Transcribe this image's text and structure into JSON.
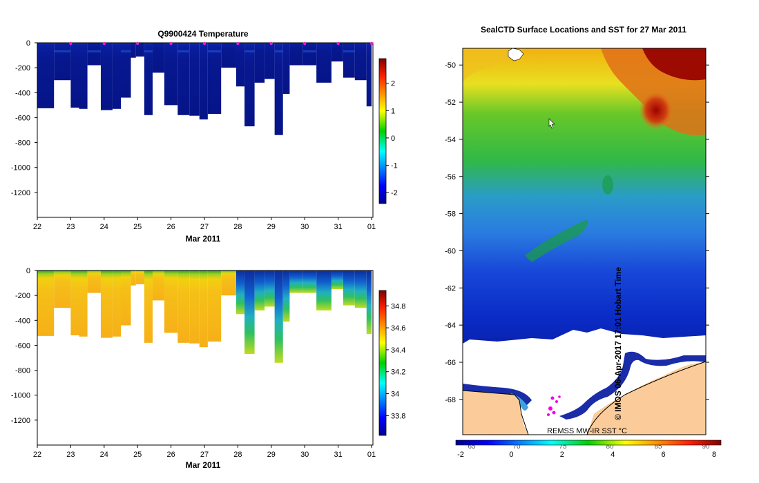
{
  "chart_data": [
    {
      "type": "heatmap",
      "title": "Q9900424  Temperature",
      "xlabel": "Mar 2011",
      "ylabel": "",
      "x_ticks": [
        "22",
        "23",
        "24",
        "25",
        "26",
        "27",
        "28",
        "29",
        "30",
        "31",
        "01"
      ],
      "y_ticks": [
        "0",
        "-200",
        "-400",
        "-600",
        "-800",
        "-1000",
        "-1200"
      ],
      "xlim": [
        22,
        32
      ],
      "ylim": [
        -1400,
        0
      ],
      "colorbar": {
        "min": -2.4,
        "max": 2.9,
        "ticks": [
          "2",
          "1",
          "0",
          "-1",
          "-2"
        ]
      },
      "profile_markers_days": [
        23,
        24,
        25,
        26,
        27,
        28,
        29,
        30,
        31,
        32
      ],
      "profiles": [
        {
          "start": 22.0,
          "end": 22.5,
          "depth": 525
        },
        {
          "start": 22.5,
          "end": 23.0,
          "depth": 300
        },
        {
          "start": 23.0,
          "end": 23.25,
          "depth": 520
        },
        {
          "start": 23.25,
          "end": 23.5,
          "depth": 530
        },
        {
          "start": 23.5,
          "end": 23.9,
          "depth": 180
        },
        {
          "start": 23.9,
          "end": 24.25,
          "depth": 540
        },
        {
          "start": 24.25,
          "end": 24.5,
          "depth": 530
        },
        {
          "start": 24.5,
          "end": 24.8,
          "depth": 440
        },
        {
          "start": 24.8,
          "end": 24.95,
          "depth": 120
        },
        {
          "start": 24.95,
          "end": 25.2,
          "depth": 110
        },
        {
          "start": 25.2,
          "end": 25.45,
          "depth": 580
        },
        {
          "start": 25.45,
          "end": 25.8,
          "depth": 240
        },
        {
          "start": 25.8,
          "end": 26.2,
          "depth": 500
        },
        {
          "start": 26.2,
          "end": 26.55,
          "depth": 580
        },
        {
          "start": 26.55,
          "end": 26.85,
          "depth": 585
        },
        {
          "start": 26.85,
          "end": 27.1,
          "depth": 615
        },
        {
          "start": 27.1,
          "end": 27.5,
          "depth": 570
        },
        {
          "start": 27.5,
          "end": 27.95,
          "depth": 200
        },
        {
          "start": 27.95,
          "end": 28.2,
          "depth": 350
        },
        {
          "start": 28.2,
          "end": 28.5,
          "depth": 670
        },
        {
          "start": 28.5,
          "end": 28.8,
          "depth": 320
        },
        {
          "start": 28.8,
          "end": 29.1,
          "depth": 290
        },
        {
          "start": 29.1,
          "end": 29.35,
          "depth": 740
        },
        {
          "start": 29.35,
          "end": 29.55,
          "depth": 410
        },
        {
          "start": 29.55,
          "end": 29.95,
          "depth": 180
        },
        {
          "start": 29.95,
          "end": 30.35,
          "depth": 180
        },
        {
          "start": 30.35,
          "end": 30.8,
          "depth": 320
        },
        {
          "start": 30.8,
          "end": 31.15,
          "depth": 150
        },
        {
          "start": 31.15,
          "end": 31.5,
          "depth": 280
        },
        {
          "start": 31.5,
          "end": 31.85,
          "depth": 300
        },
        {
          "start": 31.85,
          "end": 32.0,
          "depth": 510
        }
      ]
    },
    {
      "type": "heatmap",
      "title": "",
      "xlabel": "Mar 2011",
      "ylabel": "",
      "x_ticks": [
        "22",
        "23",
        "24",
        "25",
        "26",
        "27",
        "28",
        "29",
        "30",
        "31",
        "01"
      ],
      "y_ticks": [
        "0",
        "-200",
        "-400",
        "-600",
        "-800",
        "-1000",
        "-1200"
      ],
      "xlim": [
        22,
        32
      ],
      "ylim": [
        -1400,
        0
      ],
      "colorbar": {
        "min": 33.62,
        "max": 34.94,
        "ticks": [
          "34.8",
          "34.6",
          "34.4",
          "34.2",
          "34",
          "33.8"
        ]
      }
    },
    {
      "type": "heatmap",
      "title": "SealCTD Surface Locations and SST for 27 Mar 2011",
      "xlabel": "",
      "ylabel": "",
      "y_ticks": [
        "-50",
        "-52",
        "-54",
        "-56",
        "-58",
        "-60",
        "-62",
        "-64",
        "-66",
        "-68"
      ],
      "ylim": [
        -70,
        -49
      ],
      "x_ticks_top": [
        "65",
        "70",
        "75",
        "80",
        "85",
        "90"
      ],
      "colorbar": {
        "min": -2,
        "max": 8,
        "ticks": [
          "-2",
          "0",
          "2",
          "4",
          "6",
          "8"
        ]
      },
      "sst_source_label": "REMSS MW-IR SST °C",
      "side_label": "© IMOS 06-Apr-2017 17:01 Hobart Time"
    }
  ]
}
